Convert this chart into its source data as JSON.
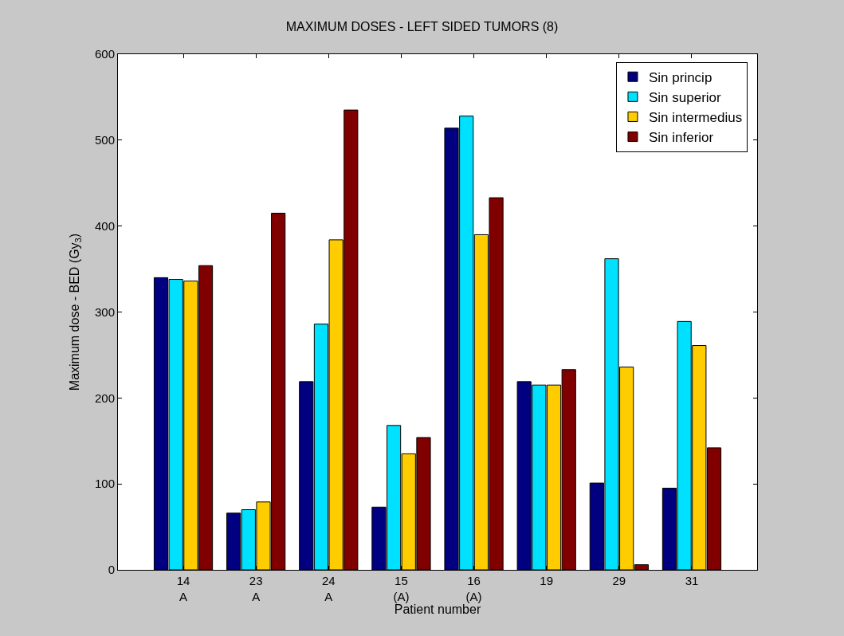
{
  "chart_data": {
    "type": "bar",
    "title": "MAXIMUM DOSES - LEFT SIDED TUMORS (8)",
    "xlabel": "Patient number",
    "ylabel": "Maximum dose - BED (Gy$_{3}$)",
    "categories": [
      "14\nA",
      "23\nA",
      "24\nA",
      "15\n(A)",
      "16\n(A)",
      "19",
      "29",
      "31"
    ],
    "series": [
      {
        "name": "Sin princip",
        "color": "#000080",
        "values": [
          340,
          66,
          219,
          73,
          514,
          219,
          101,
          95
        ]
      },
      {
        "name": "Sin superior",
        "color": "#00e0ff",
        "values": [
          338,
          70,
          286,
          168,
          528,
          215,
          362,
          289
        ]
      },
      {
        "name": "Sin intermedius",
        "color": "#ffcc00",
        "values": [
          336,
          79,
          384,
          135,
          390,
          215,
          236,
          261
        ]
      },
      {
        "name": "Sin inferior",
        "color": "#800000",
        "values": [
          354,
          415,
          535,
          154,
          433,
          233,
          6,
          142
        ]
      }
    ],
    "ylim": [
      0,
      600
    ],
    "yticks": [
      0,
      100,
      200,
      300,
      400,
      500,
      600
    ],
    "grid": false,
    "legend": "top right"
  }
}
